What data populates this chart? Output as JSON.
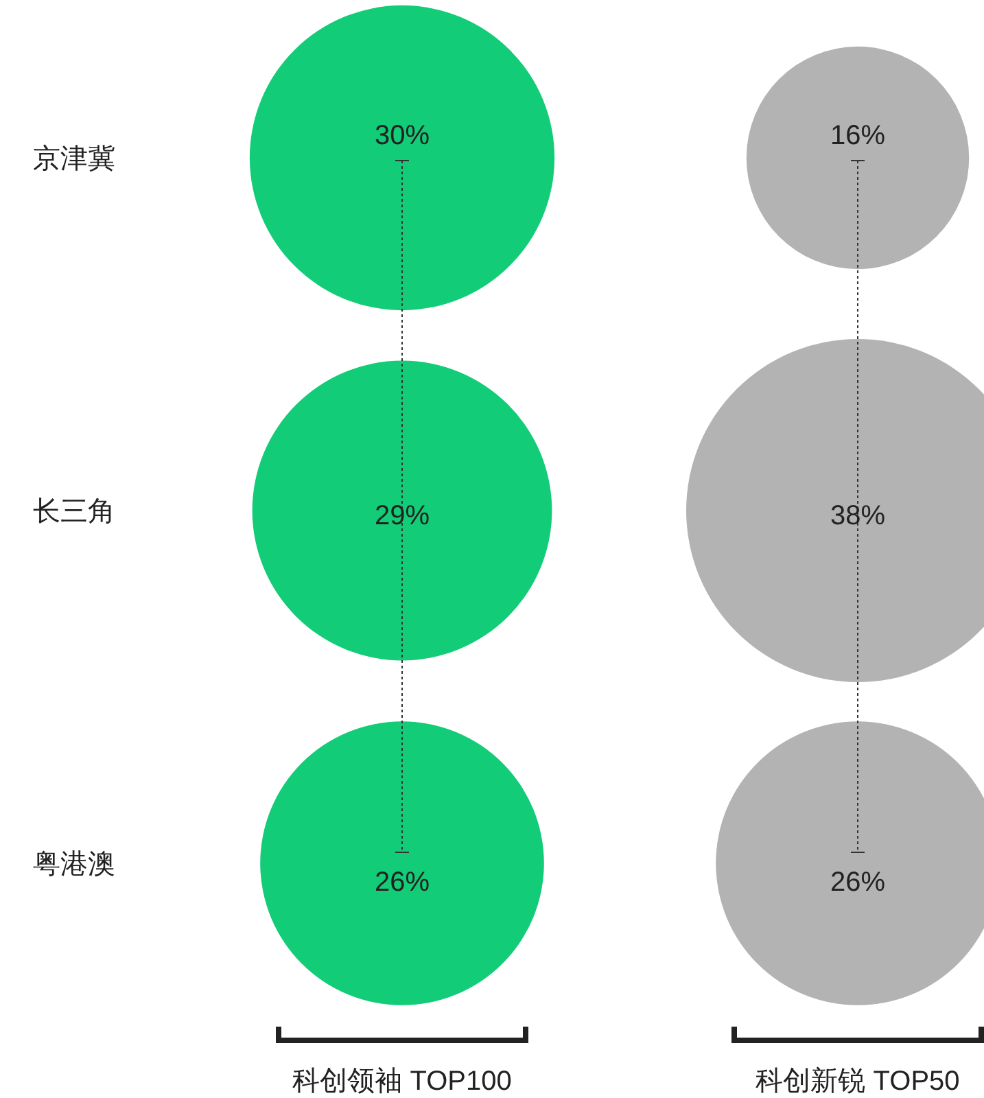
{
  "chart_data": {
    "type": "other",
    "categories": [
      "科创领袖 TOP100",
      "科创新锐 TOP50"
    ],
    "y_categories": [
      "京津冀",
      "长三角",
      "粤港澳"
    ],
    "series": [
      {
        "colors": [
          "#12cc77",
          "#b3b3b3"
        ],
        "values": [
          30,
          16
        ],
        "value_labels": [
          "30%",
          "16%"
        ]
      },
      {
        "colors": [
          "#12cc77",
          "#b3b3b3"
        ],
        "values": [
          29,
          38
        ],
        "value_labels": [
          "29%",
          "38%"
        ]
      },
      {
        "colors": [
          "#12cc77",
          "#b3b3b3"
        ],
        "values": [
          26,
          26
        ],
        "value_labels": [
          "26%",
          "26%"
        ]
      }
    ]
  }
}
